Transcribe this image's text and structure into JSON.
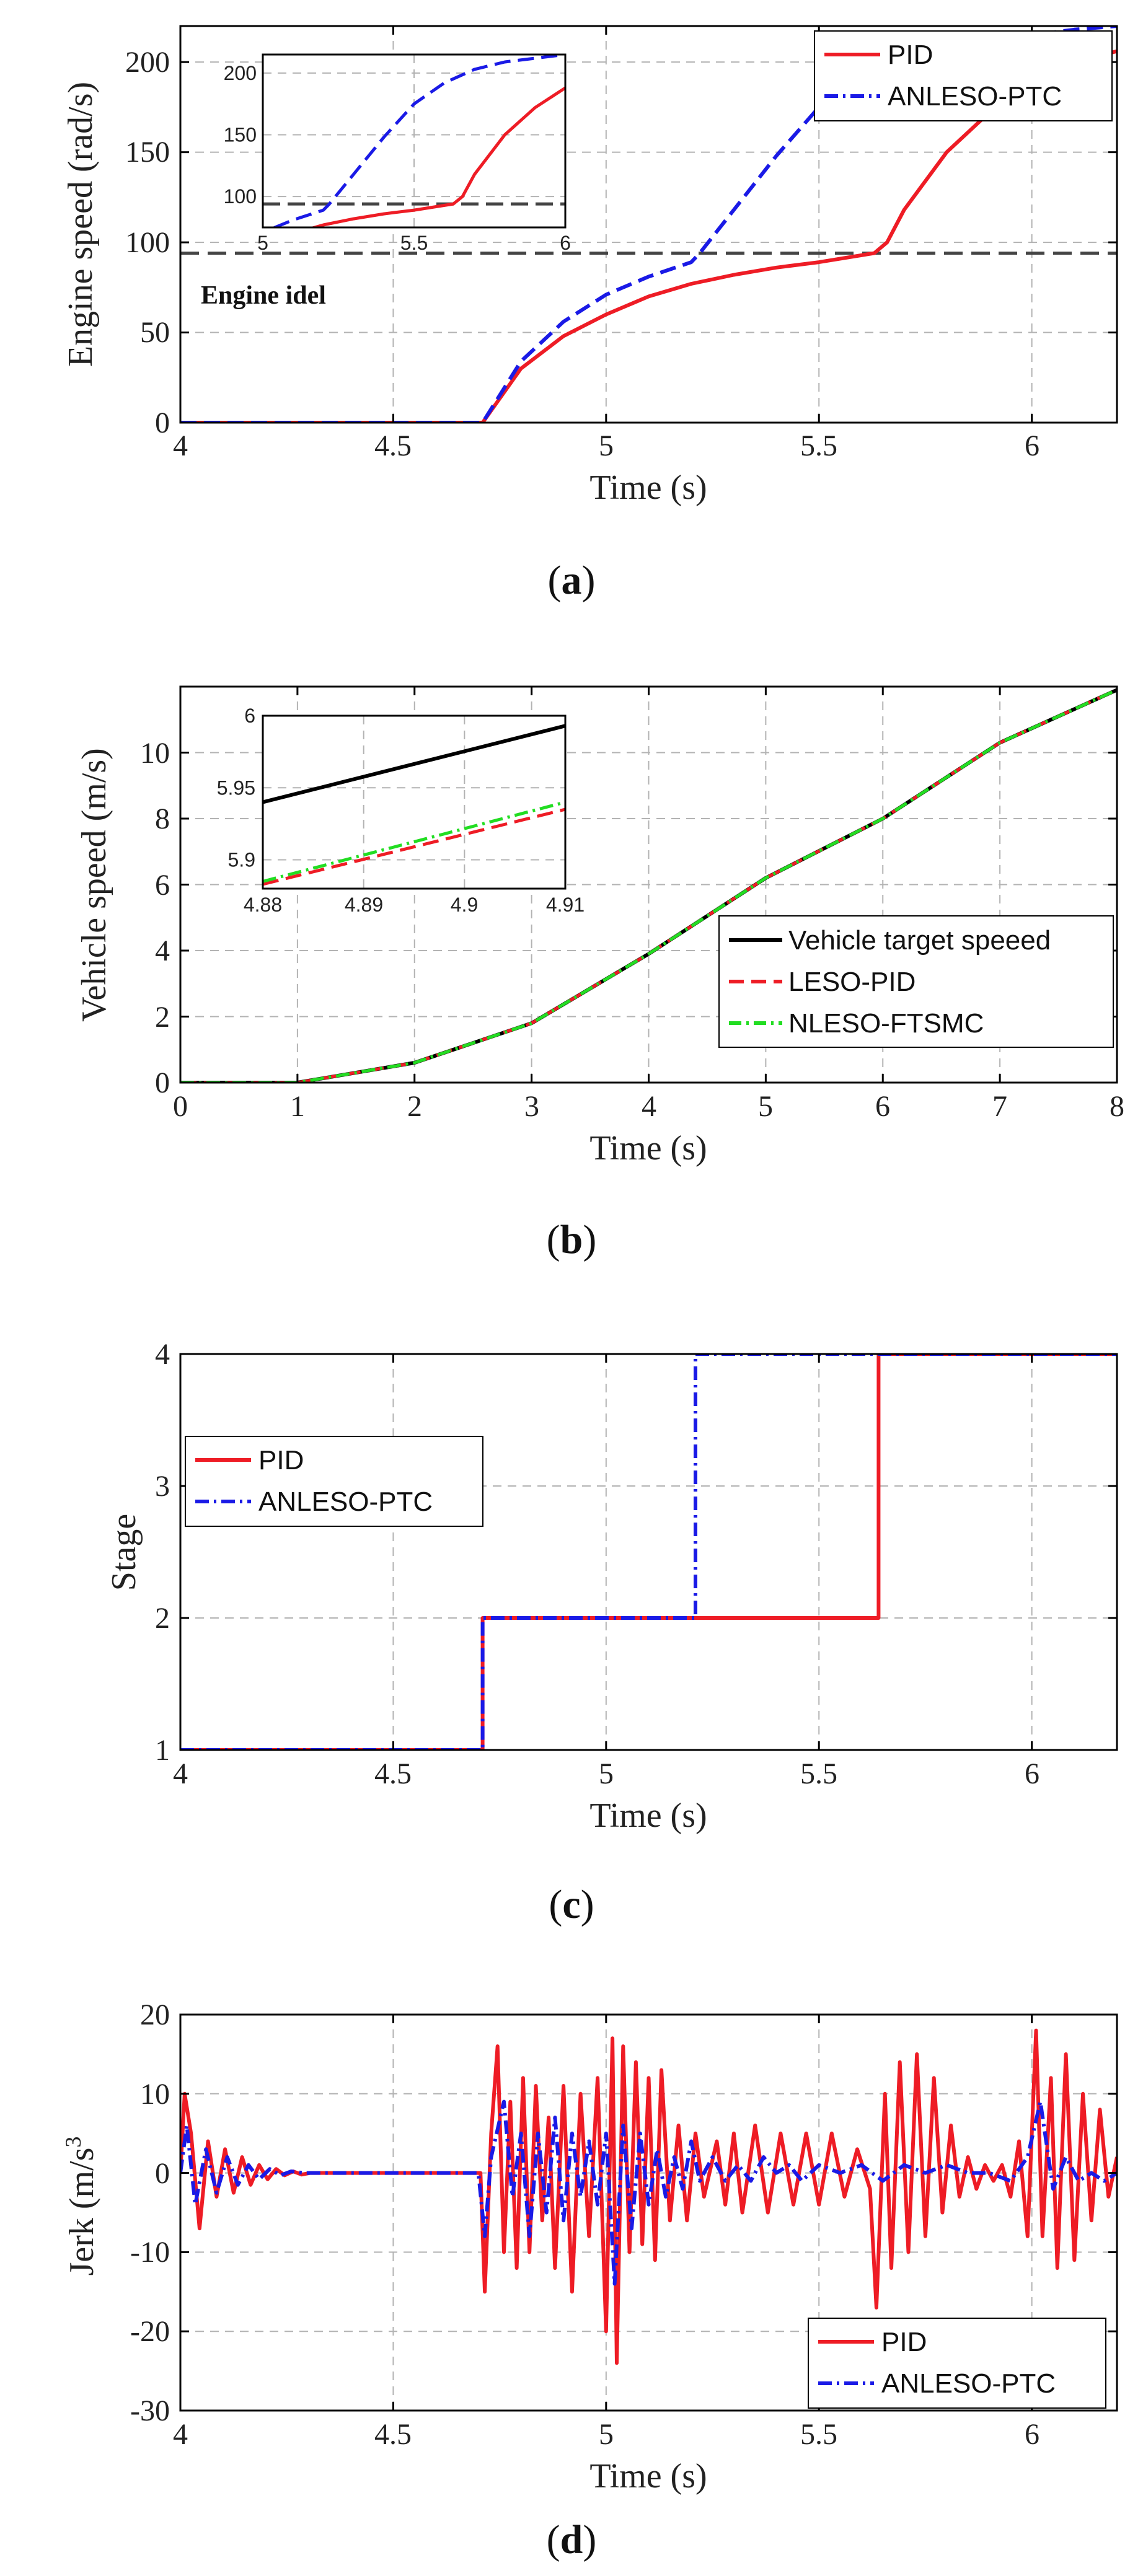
{
  "colors": {
    "pid": "#ee1c25",
    "anleso": "#1a1ae6",
    "leso": "#ee1c25",
    "nleso": "#22dd22",
    "target": "#000000",
    "grid": "#b3b3b3",
    "idle": "#444444"
  },
  "chart_data": [
    {
      "id": "a",
      "type": "line",
      "caption": "a",
      "xlabel": "Time (s)",
      "ylabel": "Engine speed (rad/s)",
      "xlim": [
        4,
        6.2
      ],
      "ylim": [
        0,
        220
      ],
      "xticks": [
        4,
        4.5,
        5,
        5.5,
        6
      ],
      "xtick_labels": [
        "4",
        "4.5",
        "5",
        "5.5",
        "6"
      ],
      "yticks": [
        0,
        50,
        100,
        150,
        200
      ],
      "ytick_labels": [
        "0",
        "50",
        "100",
        "150",
        "200"
      ],
      "legend": [
        "PID",
        "ANLESO-PTC"
      ],
      "annotation": "Engine idel",
      "idle_speed": 94,
      "series": [
        {
          "name": "PID",
          "style": "solid",
          "x": [
            4,
            4.71,
            4.8,
            4.9,
            5.0,
            5.1,
            5.2,
            5.3,
            5.4,
            5.5,
            5.63,
            5.66,
            5.7,
            5.8,
            5.9,
            6.0,
            6.1,
            6.2
          ],
          "y": [
            0,
            0,
            30,
            48,
            60,
            70,
            77,
            82,
            86,
            89,
            94,
            100,
            118,
            150,
            172,
            188,
            200,
            206
          ]
        },
        {
          "name": "ANLESO-PTC",
          "style": "dash",
          "x": [
            4,
            4.71,
            4.8,
            4.9,
            5.0,
            5.1,
            5.2,
            5.22,
            5.3,
            5.4,
            5.5,
            5.6,
            5.7,
            5.8,
            5.9,
            6.0,
            6.1,
            6.2
          ],
          "y": [
            0,
            0,
            34,
            56,
            71,
            81,
            89,
            94,
            118,
            148,
            175,
            192,
            203,
            209,
            212,
            215,
            218,
            220
          ]
        }
      ],
      "inset": {
        "xlim": [
          5,
          6
        ],
        "ylim": [
          75,
          215
        ],
        "xticks": [
          5,
          5.5,
          6
        ],
        "xtick_labels": [
          "5",
          "5.5",
          "6"
        ],
        "yticks": [
          100,
          150,
          200
        ],
        "ytick_labels": [
          "100",
          "150",
          "200"
        ]
      }
    },
    {
      "id": "b",
      "type": "line",
      "caption": "b",
      "xlabel": "Time (s)",
      "ylabel": "Vehicle speed (m/s)",
      "xlim": [
        0,
        8
      ],
      "ylim": [
        0,
        12
      ],
      "xticks": [
        0,
        1,
        2,
        3,
        4,
        5,
        6,
        7,
        8
      ],
      "xtick_labels": [
        "0",
        "1",
        "2",
        "3",
        "4",
        "5",
        "6",
        "7",
        "8"
      ],
      "yticks": [
        0,
        2,
        4,
        6,
        8,
        10
      ],
      "ytick_labels": [
        "0",
        "2",
        "4",
        "6",
        "8",
        "10"
      ],
      "legend": [
        "Vehicle target speeed",
        "LESO-PID",
        "NLESO-FTSMC"
      ],
      "series": [
        {
          "name": "Vehicle target speeed",
          "style": "solid",
          "x": [
            0,
            1,
            2,
            3,
            4,
            5,
            6,
            7,
            8
          ],
          "y": [
            0,
            0,
            0.6,
            1.8,
            3.9,
            6.2,
            8.0,
            10.3,
            11.9
          ]
        },
        {
          "name": "LESO-PID",
          "style": "dash",
          "x": [
            0,
            1,
            2,
            3,
            4,
            5,
            6,
            7,
            8
          ],
          "y": [
            0,
            0,
            0.6,
            1.8,
            3.9,
            6.2,
            8.0,
            10.3,
            11.9
          ]
        },
        {
          "name": "NLESO-FTSMC",
          "style": "dashdot",
          "x": [
            0,
            1,
            2,
            3,
            4,
            5,
            6,
            7,
            8
          ],
          "y": [
            0,
            0,
            0.6,
            1.8,
            3.9,
            6.2,
            8.0,
            10.3,
            11.9
          ]
        }
      ],
      "inset": {
        "xlim": [
          4.88,
          4.91
        ],
        "ylim": [
          5.88,
          6.0
        ],
        "xticks": [
          4.88,
          4.89,
          4.9,
          4.91
        ],
        "xtick_labels": [
          "4.88",
          "4.89",
          "4.9",
          "4.91"
        ],
        "yticks": [
          5.9,
          5.95,
          6.0
        ],
        "ytick_labels": [
          "5.9",
          "5.95",
          "6"
        ],
        "series": [
          {
            "name": "Vehicle target speeed",
            "x": [
              4.88,
              4.91
            ],
            "y": [
              5.94,
              5.993
            ]
          },
          {
            "name": "LESO-PID",
            "x": [
              4.88,
              4.91
            ],
            "y": [
              5.883,
              5.935
            ]
          },
          {
            "name": "NLESO-FTSMC",
            "x": [
              4.88,
              4.91
            ],
            "y": [
              5.885,
              5.94
            ]
          }
        ]
      }
    },
    {
      "id": "c",
      "type": "line",
      "caption": "c",
      "xlabel": "Time (s)",
      "ylabel": "Stage",
      "xlim": [
        4,
        6.2
      ],
      "ylim": [
        1,
        4
      ],
      "xticks": [
        4,
        4.5,
        5,
        5.5,
        6
      ],
      "xtick_labels": [
        "4",
        "4.5",
        "5",
        "5.5",
        "6"
      ],
      "yticks": [
        1,
        2,
        3,
        4
      ],
      "ytick_labels": [
        "1",
        "2",
        "3",
        "4"
      ],
      "legend": [
        "PID",
        "ANLESO-PTC"
      ],
      "series": [
        {
          "name": "PID",
          "style": "solid",
          "x": [
            4,
            4.71,
            4.71,
            5.64,
            5.64,
            6.2
          ],
          "y": [
            1,
            1,
            2,
            2,
            4,
            4
          ]
        },
        {
          "name": "ANLESO-PTC",
          "style": "dashdot",
          "x": [
            4,
            4.71,
            4.71,
            5.21,
            5.21,
            6.2
          ],
          "y": [
            1,
            1,
            2,
            2,
            4,
            4
          ]
        }
      ]
    },
    {
      "id": "d",
      "type": "line",
      "caption": "d",
      "xlabel": "Time (s)",
      "ylabel": "Jerk (m/s",
      "ylabel_sup": "3",
      "xlim": [
        4,
        6.2
      ],
      "ylim": [
        -30,
        20
      ],
      "xticks": [
        4,
        4.5,
        5,
        5.5,
        6
      ],
      "xtick_labels": [
        "4",
        "4.5",
        "5",
        "5.5",
        "6"
      ],
      "yticks": [
        -30,
        -20,
        -10,
        0,
        10,
        20
      ],
      "ytick_labels": [
        "-30",
        "-20",
        "-10",
        "0",
        "10",
        "20"
      ],
      "legend": [
        "PID",
        "ANLESO-PTC"
      ],
      "series": [
        {
          "name": "PID",
          "style": "solid",
          "x": [
            4.0,
            4.01,
            4.025,
            4.045,
            4.065,
            4.085,
            4.105,
            4.125,
            4.145,
            4.165,
            4.185,
            4.205,
            4.225,
            4.245,
            4.265,
            4.285,
            4.305,
            4.33,
            4.36,
            4.4,
            4.45,
            4.5,
            4.6,
            4.7,
            4.705,
            4.715,
            4.73,
            4.745,
            4.76,
            4.775,
            4.79,
            4.805,
            4.82,
            4.835,
            4.85,
            4.865,
            4.88,
            4.9,
            4.92,
            4.94,
            4.96,
            4.98,
            5.0,
            5.015,
            5.025,
            5.04,
            5.055,
            5.07,
            5.085,
            5.1,
            5.115,
            5.13,
            5.15,
            5.17,
            5.19,
            5.21,
            5.23,
            5.26,
            5.28,
            5.3,
            5.32,
            5.35,
            5.38,
            5.41,
            5.44,
            5.47,
            5.5,
            5.53,
            5.56,
            5.59,
            5.62,
            5.635,
            5.655,
            5.67,
            5.69,
            5.71,
            5.73,
            5.75,
            5.77,
            5.79,
            5.81,
            5.83,
            5.85,
            5.87,
            5.89,
            5.91,
            5.93,
            5.95,
            5.97,
            5.99,
            6.01,
            6.025,
            6.045,
            6.06,
            6.08,
            6.1,
            6.12,
            6.14,
            6.16,
            6.18,
            6.2
          ],
          "y": [
            0,
            10,
            5,
            -7,
            4,
            -3,
            3,
            -2.5,
            2,
            -1.5,
            1,
            -0.8,
            0.5,
            -0.3,
            0.2,
            -0.2,
            0,
            0,
            0,
            0,
            0,
            0,
            0,
            0,
            0,
            -15,
            5,
            16,
            -10,
            9,
            -12,
            12,
            -10,
            11,
            -6,
            7,
            -12,
            11,
            -15,
            10,
            -8,
            12,
            -20,
            17,
            -24,
            16,
            -10,
            14,
            -9,
            12,
            -11,
            13,
            -6,
            6,
            -6,
            5,
            -3,
            4,
            -4,
            5,
            -5,
            6,
            -5,
            5,
            -4,
            5,
            -4,
            5,
            -3,
            3,
            -2,
            -17,
            10,
            -12,
            14,
            -10,
            15,
            -8,
            12,
            -5,
            6,
            -3,
            2,
            -2,
            1,
            -1,
            1,
            -3,
            4,
            -8,
            18,
            -8,
            12,
            -12,
            15,
            -11,
            10,
            -6,
            8,
            -3,
            2
          ]
        },
        {
          "name": "ANLESO-PTC",
          "style": "dashdot",
          "x": [
            4.0,
            4.015,
            4.035,
            4.06,
            4.085,
            4.11,
            4.135,
            4.16,
            4.185,
            4.21,
            4.235,
            4.26,
            4.29,
            4.33,
            4.4,
            4.5,
            4.6,
            4.7,
            4.715,
            4.73,
            4.76,
            4.78,
            4.8,
            4.82,
            4.84,
            4.86,
            4.88,
            4.9,
            4.92,
            4.94,
            4.96,
            4.98,
            5.0,
            5.02,
            5.04,
            5.06,
            5.08,
            5.1,
            5.12,
            5.14,
            5.16,
            5.18,
            5.2,
            5.22,
            5.25,
            5.28,
            5.31,
            5.34,
            5.37,
            5.4,
            5.43,
            5.46,
            5.5,
            5.55,
            5.6,
            5.65,
            5.7,
            5.75,
            5.8,
            5.85,
            5.9,
            5.95,
            5.99,
            6.02,
            6.05,
            6.08,
            6.11,
            6.14,
            6.17,
            6.2
          ],
          "y": [
            0,
            6,
            -4,
            3,
            -2.5,
            2,
            -1.5,
            1,
            -0.8,
            0.5,
            -0.3,
            0.2,
            0,
            0,
            0,
            0,
            0,
            0,
            -8,
            2,
            9,
            -3,
            5,
            -8,
            5,
            -5,
            7,
            -6,
            5,
            -3,
            4,
            -4,
            5,
            -14,
            6,
            -7,
            5,
            -4,
            3,
            -3,
            2,
            -2,
            4,
            -1,
            2,
            -1,
            1,
            -1,
            2,
            0,
            1,
            -1,
            1,
            0,
            1,
            -1,
            1,
            0,
            1,
            0,
            0,
            -1,
            2,
            9,
            -2,
            2,
            -1,
            0,
            -1,
            0
          ]
        }
      ]
    }
  ]
}
